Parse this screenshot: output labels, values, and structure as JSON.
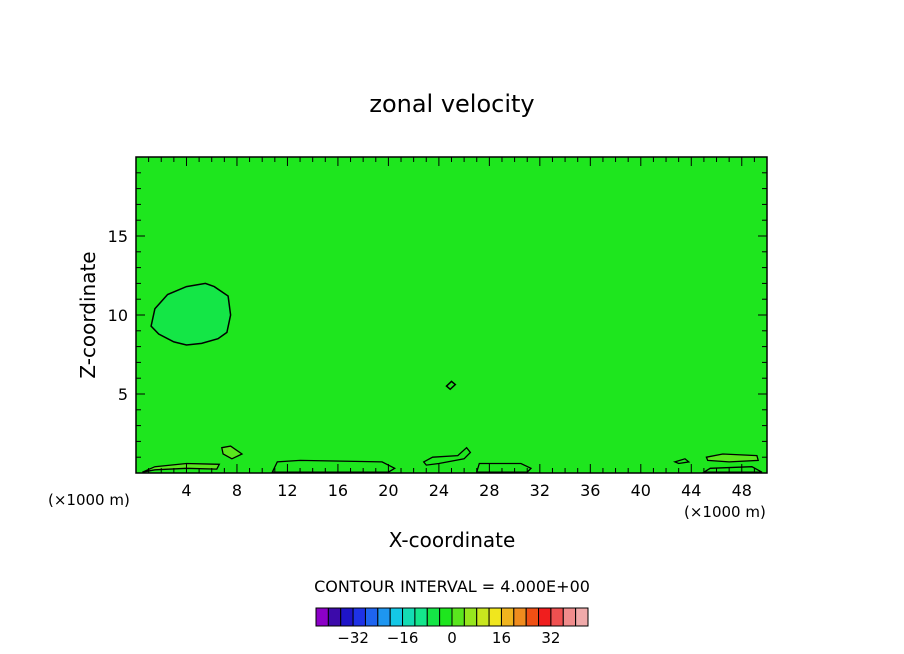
{
  "chart_data": {
    "type": "heatmap",
    "title": "zonal velocity",
    "xlabel": "X-coordinate",
    "ylabel": "Z-coordinate",
    "x_unit_left": "(×1000 m)",
    "x_unit_right": "(×1000 m)",
    "xlim": [
      0,
      50
    ],
    "ylim": [
      0,
      20
    ],
    "x_ticks": [
      4,
      8,
      12,
      16,
      20,
      24,
      28,
      32,
      36,
      40,
      44,
      48
    ],
    "y_ticks": [
      5,
      10,
      15
    ],
    "background_color": "#1ee61e",
    "contour_interval_label": "CONTOUR INTERVAL = 4.000E+00",
    "features": [
      {
        "label": "negative anomaly",
        "fill": "#14e646",
        "outline": [
          [
            1.2,
            9.3
          ],
          [
            1.5,
            10.4
          ],
          [
            2.5,
            11.3
          ],
          [
            4.0,
            11.8
          ],
          [
            5.5,
            12.0
          ],
          [
            6.2,
            11.8
          ],
          [
            7.3,
            11.2
          ],
          [
            7.5,
            10.0
          ],
          [
            7.2,
            8.9
          ],
          [
            6.5,
            8.5
          ],
          [
            5.2,
            8.2
          ],
          [
            4.0,
            8.1
          ],
          [
            3.0,
            8.3
          ],
          [
            1.8,
            8.8
          ]
        ]
      },
      {
        "label": "small cell",
        "fill": "none",
        "outline": [
          [
            24.6,
            5.5
          ],
          [
            25.0,
            5.8
          ],
          [
            25.3,
            5.6
          ],
          [
            24.9,
            5.3
          ]
        ]
      }
    ],
    "near_surface_cells": [
      {
        "fill": "#5ae61e",
        "outline": [
          [
            0.5,
            0.05
          ],
          [
            1.5,
            0.4
          ],
          [
            4.0,
            0.6
          ],
          [
            6.6,
            0.55
          ],
          [
            6.4,
            0.25
          ],
          [
            4.0,
            0.3
          ],
          [
            1.5,
            0.2
          ]
        ]
      },
      {
        "fill": "#5ae61e",
        "outline": [
          [
            6.8,
            1.6
          ],
          [
            7.5,
            1.7
          ],
          [
            8.4,
            1.2
          ],
          [
            7.6,
            0.9
          ],
          [
            6.9,
            1.2
          ]
        ]
      },
      {
        "fill": "none",
        "outline": [
          [
            10.8,
            0.05
          ],
          [
            11.2,
            0.7
          ],
          [
            13.0,
            0.8
          ],
          [
            19.5,
            0.7
          ],
          [
            20.5,
            0.3
          ],
          [
            20.0,
            0.05
          ]
        ]
      },
      {
        "fill": "none",
        "outline": [
          [
            22.8,
            0.7
          ],
          [
            23.5,
            1.0
          ],
          [
            25.5,
            1.1
          ],
          [
            26.2,
            1.6
          ],
          [
            26.5,
            1.3
          ],
          [
            26.0,
            0.9
          ],
          [
            24.0,
            0.6
          ],
          [
            23.0,
            0.5
          ]
        ]
      },
      {
        "fill": "none",
        "outline": [
          [
            27.0,
            0.05
          ],
          [
            27.2,
            0.6
          ],
          [
            30.5,
            0.6
          ],
          [
            31.3,
            0.3
          ],
          [
            31.0,
            0.05
          ]
        ]
      },
      {
        "fill": "#5ae61e",
        "outline": [
          [
            45.2,
            1.0
          ],
          [
            46.5,
            1.2
          ],
          [
            49.2,
            1.1
          ],
          [
            49.3,
            0.8
          ],
          [
            47.0,
            0.7
          ],
          [
            45.3,
            0.8
          ]
        ]
      },
      {
        "fill": "none",
        "outline": [
          [
            45.0,
            0.05
          ],
          [
            45.5,
            0.3
          ],
          [
            48.8,
            0.4
          ],
          [
            49.6,
            0.05
          ]
        ]
      },
      {
        "fill": "none",
        "outline": [
          [
            42.7,
            0.7
          ],
          [
            43.5,
            0.9
          ],
          [
            43.8,
            0.7
          ],
          [
            43.0,
            0.6
          ]
        ]
      }
    ],
    "colorbar": {
      "colors": [
        "#8c00c8",
        "#3c0aaa",
        "#1e14c8",
        "#1e32e6",
        "#1e64f0",
        "#1e96f0",
        "#14c8e6",
        "#14dcb4",
        "#14e68c",
        "#14e646",
        "#1ee61e",
        "#5ae61e",
        "#96e61e",
        "#c8e61e",
        "#f0e61e",
        "#f0b41e",
        "#f08c1e",
        "#f05014",
        "#f01e1e",
        "#f05050",
        "#f08c8c",
        "#f0aaaa"
      ],
      "tick_values": [
        -32,
        -16,
        0,
        16,
        32
      ],
      "tick_labels": [
        "−32",
        "−16",
        "0",
        "16",
        "32"
      ],
      "min": -44,
      "step": 4
    }
  }
}
